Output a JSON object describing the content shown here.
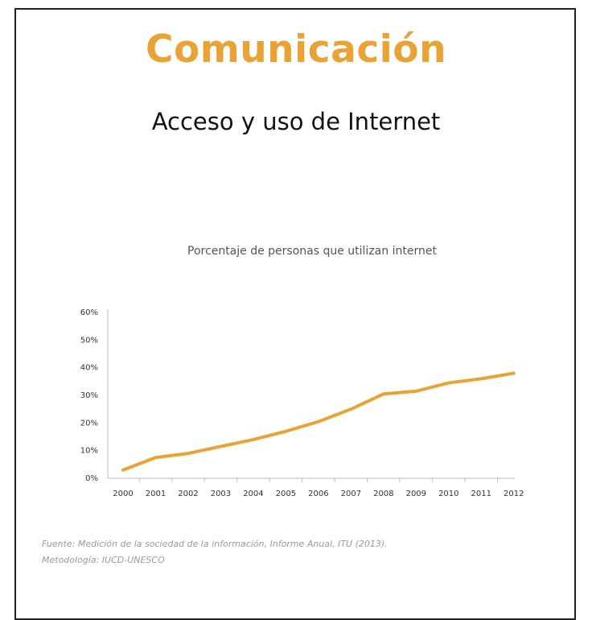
{
  "slide": {
    "title": "Comunicación",
    "subtitle": "Acceso y uso de Internet"
  },
  "chart_data": {
    "type": "line",
    "title": "Porcentaje de personas que utilizan internet",
    "xlabel": "",
    "ylabel": "",
    "categories": [
      "2000",
      "2001",
      "2002",
      "2003",
      "2004",
      "2005",
      "2006",
      "2007",
      "2008",
      "2009",
      "2010",
      "2011",
      "2012"
    ],
    "series": [
      {
        "values": [
          3.0,
          7.5,
          9.0,
          11.5,
          14.0,
          17.0,
          20.5,
          25.0,
          30.5,
          31.5,
          34.5,
          36.0,
          38.0
        ]
      }
    ],
    "ylim": [
      0,
      60
    ],
    "yticks": [
      "0%",
      "10%",
      "20%",
      "30%",
      "40%",
      "50%",
      "60%"
    ],
    "grid": false,
    "legend": "none",
    "line_color": "#e9a233",
    "axis_color": "#bdbdbd"
  },
  "source": {
    "line1": "Fuente: Medición de la sociedad de la información, Informe Anual, ITU (2013).",
    "line2": "Metodología: IUCD-UNESCO"
  }
}
